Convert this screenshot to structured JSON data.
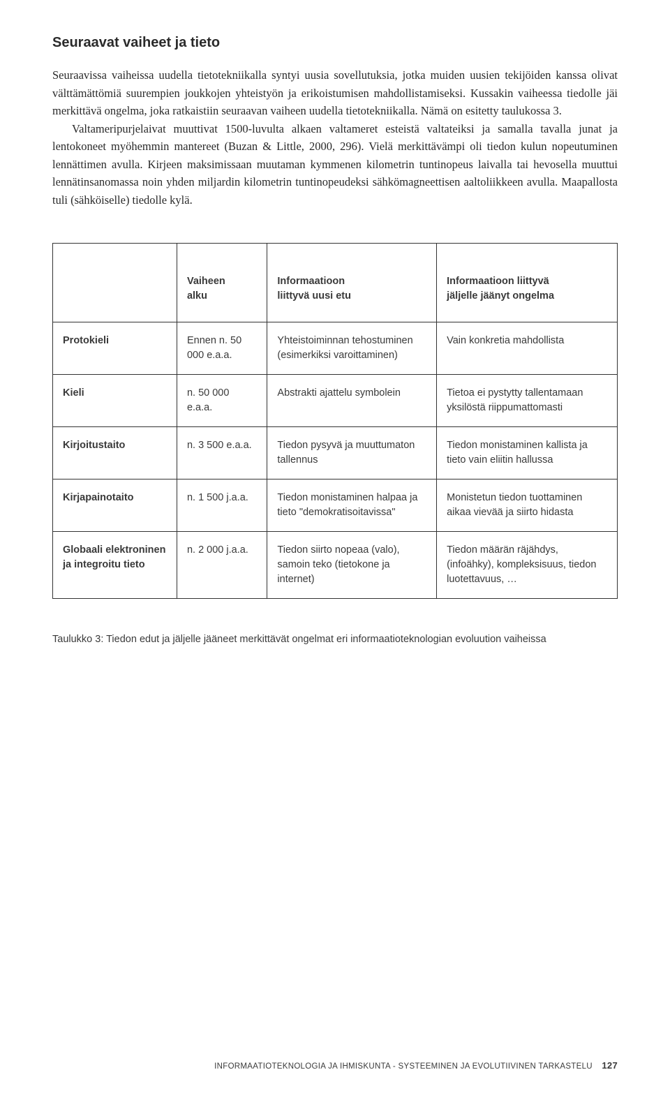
{
  "heading": "Seuraavat vaiheet ja tieto",
  "paragraph1": "Seuraavissa vaiheissa uudella tietotekniikalla syntyi uusia sovellutuksia, jotka muiden uusien tekijöiden kanssa olivat välttämättömiä suurempien joukkojen yhteistyön ja erikoistumisen mahdollistamiseksi. Kussakin vaiheessa tiedolle jäi merkittävä ongelma, joka ratkaistiin seuraavan vaiheen uudella tietotekniikalla. Nämä on esitetty taulukossa 3.",
  "paragraph2_indent": true,
  "paragraph2": "Valtameripurjelaivat muuttivat 1500-luvulta alkaen valtameret esteistä valtateiksi ja samalla tavalla junat ja lentokoneet myöhemmin mantereet (Buzan & Little, 2000, 296). Vielä merkittävämpi oli tiedon kulun nopeutuminen lennättimen avulla. Kirjeen maksimissaan muutaman kymmenen kilometrin tuntinopeus laivalla tai hevosella muuttui lennätinsanomassa noin yhden miljardin kilometrin tuntinopeudeksi sähkömagneettisen aaltoliikkeen avulla. Maapallosta tuli (sähköiselle) tiedolle kylä.",
  "table": {
    "headers": {
      "col0": "",
      "col1_line1": "Vaiheen",
      "col1_line2": "alku",
      "col2_line1": "Informaatioon",
      "col2_line2": "liittyvä uusi etu",
      "col3_line1": "Informaatioon liittyvä",
      "col3_line2": "jäljelle jäänyt ongelma"
    },
    "rows": [
      {
        "label": "Protokieli",
        "c1": "Ennen n. 50 000 e.a.a.",
        "c2": "Yhteistoiminnan tehostuminen (esimerkiksi varoittaminen)",
        "c3": "Vain konkretia mahdollista"
      },
      {
        "label": "Kieli",
        "c1": "n. 50 000 e.a.a.",
        "c2": "Abstrakti ajattelu symbolein",
        "c3": "Tietoa ei pystytty tallentamaan yksilöstä riippumattomasti"
      },
      {
        "label": "Kirjoitustaito",
        "c1": "n. 3 500 e.a.a.",
        "c2": "Tiedon pysyvä ja muuttumaton tallennus",
        "c3": "Tiedon monistaminen kallista ja tieto vain eliitin hallussa"
      },
      {
        "label": "Kirjapainotaito",
        "c1": "n. 1 500 j.a.a.",
        "c2": "Tiedon monistaminen halpaa ja tieto \"demokratisoitavissa\"",
        "c3": "Monistetun tiedon tuottaminen aikaa vievää ja siirto hidasta"
      },
      {
        "label": "Globaali elektroninen ja integroitu tieto",
        "c1": "n. 2 000 j.a.a.",
        "c2": "Tiedon siirto nopeaa (valo), samoin teko (tietokone ja internet)",
        "c3": "Tiedon määrän räjähdys, (infoähky), kompleksisuus, tiedon luotettavuus, …"
      }
    ]
  },
  "caption": "Taulukko 3: Tiedon edut ja jäljelle jääneet merkittävät ongelmat eri informaatioteknologian evoluution vaiheissa",
  "footer_text": "INFORMAATIOTEKNOLOGIA JA IHMISKUNTA - SYSTEEMINEN JA EVOLUTIIVINEN TARKASTELU",
  "page_number": "127"
}
